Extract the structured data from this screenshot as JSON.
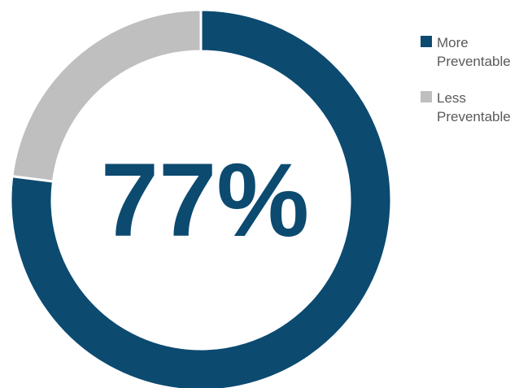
{
  "chart_data": {
    "type": "pie",
    "donut": true,
    "center_label": "77%",
    "categories": [
      "More Preventable",
      "Less Preventable"
    ],
    "values": [
      77,
      23
    ],
    "colors": [
      "#0c4a70",
      "#bfbfc0"
    ],
    "legend_position": "right",
    "start_angle_deg": 0,
    "direction": "clockwise"
  }
}
